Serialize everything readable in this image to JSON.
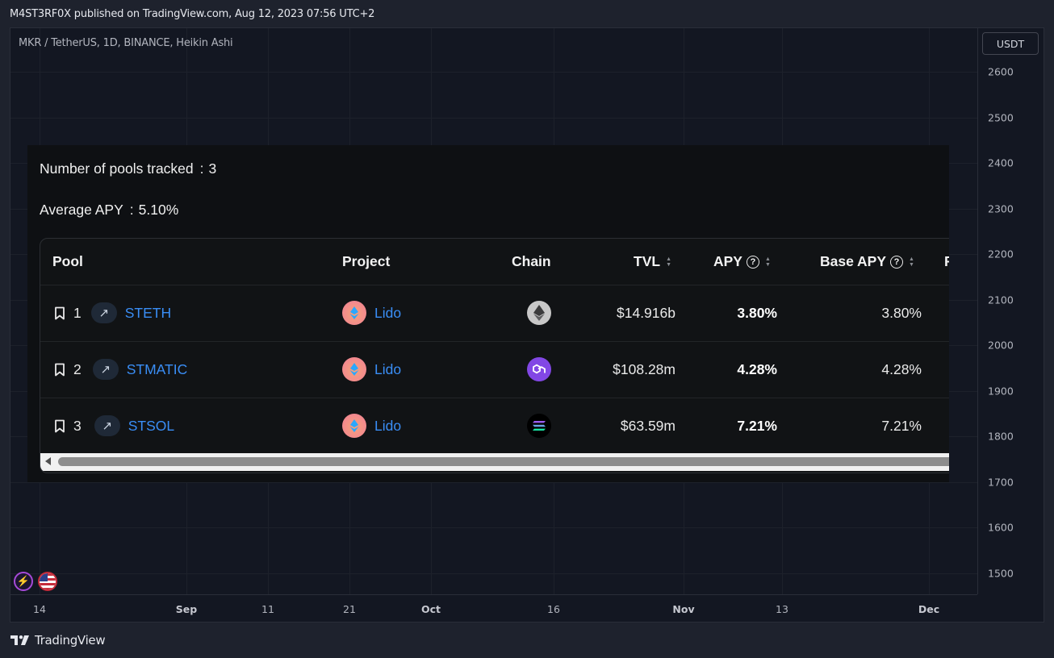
{
  "header": {
    "published_text": "M4ST3RF0X published on TradingView.com, Aug 12, 2023 07:56 UTC+2"
  },
  "chart": {
    "symbol_line": "MKR / TetherUS, 1D, BINANCE, Heikin Ashi",
    "currency": "USDT",
    "price_ticks": [
      "2600",
      "2500",
      "2400",
      "2300",
      "2200",
      "2100",
      "2000",
      "1900",
      "1800",
      "1700",
      "1600",
      "1500"
    ],
    "time_ticks": [
      "14",
      "Sep",
      "11",
      "21",
      "Oct",
      "16",
      "Nov",
      "13",
      "Dec"
    ],
    "grid": true
  },
  "widget": {
    "pools_tracked_label": "Number of pools tracked",
    "pools_tracked_value": "3",
    "avg_apy_label": "Average APY",
    "avg_apy_value": "5.10%",
    "separator": ":",
    "columns": {
      "pool": "Pool",
      "project": "Project",
      "chain": "Chain",
      "tvl": "TVL",
      "apy": "APY",
      "base_apy": "Base APY",
      "next": "F"
    },
    "rows": [
      {
        "rank": "1",
        "pool": "STETH",
        "project": "Lido",
        "chain_icon": "ethereum-icon",
        "tvl": "$14.916b",
        "apy": "3.80%",
        "base_apy": "3.80%"
      },
      {
        "rank": "2",
        "pool": "STMATIC",
        "project": "Lido",
        "chain_icon": "polygon-icon",
        "tvl": "$108.28m",
        "apy": "4.28%",
        "base_apy": "4.28%"
      },
      {
        "rank": "3",
        "pool": "STSOL",
        "project": "Lido",
        "chain_icon": "solana-icon",
        "tvl": "$63.59m",
        "apy": "7.21%",
        "base_apy": "7.21%"
      }
    ]
  },
  "footer": {
    "brand": "TradingView"
  },
  "colors": {
    "link": "#3a8ef6",
    "background": "#131722",
    "widget_bg": "#0e1013"
  }
}
